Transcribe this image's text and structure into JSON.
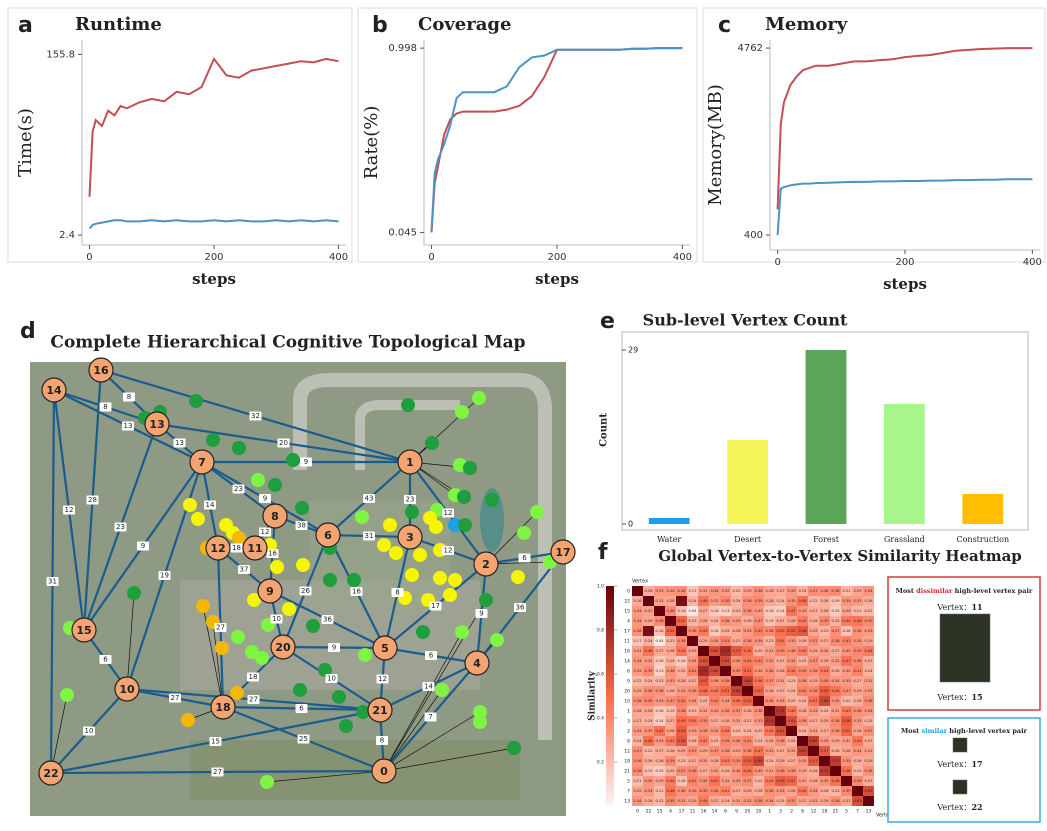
{
  "chart_data": [
    {
      "type": "line",
      "panel_label": "a",
      "title": "Runtime",
      "xlabel": "steps",
      "ylabel": "Time(s)",
      "x": [
        0,
        5,
        10,
        20,
        30,
        40,
        50,
        60,
        80,
        100,
        120,
        140,
        160,
        180,
        200,
        220,
        240,
        260,
        280,
        300,
        320,
        340,
        360,
        380,
        400
      ],
      "series": [
        {
          "color": "#c44e52",
          "values": [
            35,
            90,
            100,
            95,
            108,
            104,
            112,
            110,
            115,
            118,
            116,
            124,
            122,
            128,
            152,
            138,
            136,
            142,
            144,
            146,
            148,
            150,
            149,
            152,
            150
          ]
        },
        {
          "color": "#4c92c3",
          "values": [
            8,
            11,
            12,
            13,
            14,
            15,
            15,
            14,
            14,
            15,
            14,
            15,
            14,
            14,
            15,
            14,
            15,
            14,
            14,
            15,
            14,
            15,
            14,
            15,
            14
          ]
        }
      ],
      "xlim": [
        -12,
        412
      ],
      "ylim": [
        -6,
        168
      ],
      "xticks": [
        0,
        200,
        400
      ],
      "yticks": [
        2.4,
        155.8
      ]
    },
    {
      "type": "line",
      "panel_label": "b",
      "title": "Coverage",
      "xlabel": "steps",
      "ylabel": "Rate(%)",
      "x": [
        0,
        5,
        10,
        20,
        30,
        40,
        50,
        60,
        80,
        100,
        120,
        140,
        160,
        180,
        200,
        220,
        240,
        260,
        280,
        300,
        320,
        340,
        360,
        380,
        400
      ],
      "series": [
        {
          "color": "#c44e52",
          "values": [
            0.045,
            0.3,
            0.38,
            0.55,
            0.63,
            0.66,
            0.67,
            0.67,
            0.67,
            0.67,
            0.68,
            0.7,
            0.75,
            0.85,
            0.99,
            0.99,
            0.99,
            0.99,
            0.99,
            0.99,
            0.995,
            0.995,
            0.998,
            0.998,
            0.998
          ]
        },
        {
          "color": "#4c92c3",
          "values": [
            0.05,
            0.35,
            0.42,
            0.5,
            0.6,
            0.74,
            0.77,
            0.77,
            0.77,
            0.77,
            0.8,
            0.9,
            0.95,
            0.96,
            0.99,
            0.99,
            0.99,
            0.99,
            0.99,
            0.99,
            0.995,
            0.995,
            0.998,
            0.998,
            0.998
          ]
        }
      ],
      "xlim": [
        -12,
        412
      ],
      "ylim": [
        -0.02,
        1.04
      ],
      "xticks": [
        0,
        200,
        400
      ],
      "yticks": [
        0.045,
        0.998
      ]
    },
    {
      "type": "line",
      "panel_label": "c",
      "title": "Memory",
      "xlabel": "steps",
      "ylabel": "Memory(MB)",
      "x": [
        0,
        5,
        10,
        20,
        30,
        40,
        50,
        60,
        80,
        100,
        120,
        140,
        160,
        180,
        200,
        220,
        240,
        260,
        280,
        300,
        320,
        340,
        360,
        380,
        400
      ],
      "series": [
        {
          "color": "#c44e52",
          "values": [
            1000,
            3000,
            3500,
            3900,
            4100,
            4250,
            4300,
            4350,
            4350,
            4400,
            4450,
            4450,
            4480,
            4500,
            4550,
            4580,
            4600,
            4650,
            4700,
            4720,
            4740,
            4750,
            4760,
            4762,
            4762
          ]
        },
        {
          "color": "#4c92c3",
          "values": [
            400,
            1480,
            1520,
            1560,
            1580,
            1600,
            1600,
            1610,
            1620,
            1630,
            1640,
            1640,
            1650,
            1650,
            1660,
            1660,
            1670,
            1670,
            1680,
            1680,
            1690,
            1690,
            1700,
            1700,
            1700
          ]
        }
      ],
      "xlim": [
        -12,
        412
      ],
      "ylim": [
        50,
        4950
      ],
      "xticks": [
        0,
        200,
        400
      ],
      "yticks": [
        400,
        4762
      ]
    },
    {
      "type": "bar",
      "panel_label": "e",
      "title": "Sub-level Vertex Count",
      "ylabel": "Count",
      "categories": [
        "Water",
        "Desert",
        "Forest",
        "Grassland",
        "Construction"
      ],
      "values": [
        1,
        14,
        29,
        20,
        5
      ],
      "colors": [
        "#1fa0e6",
        "#f5f55a",
        "#5aa55a",
        "#a8f58c",
        "#ffbf00"
      ],
      "ylim": [
        0,
        31
      ],
      "yticks": [
        0,
        29
      ]
    },
    {
      "type": "heatmap",
      "panel_label": "f",
      "title": "Global Vertex-to-Vertex Similarity Heatmap",
      "axis_label": "Vertex",
      "colorbar_label": "Similarity",
      "categories": [
        0,
        22,
        15,
        4,
        17,
        11,
        16,
        14,
        6,
        9,
        20,
        10,
        1,
        3,
        2,
        8,
        12,
        18,
        21,
        5,
        7,
        13
      ],
      "zlim": [
        0,
        1
      ],
      "colorbar_ticks": [
        0.2,
        0.4,
        0.6,
        0.8,
        {
          "value": 1,
          "label": "1.0"
        }
      ],
      "values": [
        [
          1,
          0.26,
          0.33,
          0.34,
          0.36,
          0.17,
          0.31,
          0.34,
          0.32,
          0.22,
          0.29,
          0.36,
          0.28,
          0.27,
          0.33,
          0.24,
          0.37,
          0.36,
          0.38,
          0.21,
          0.29,
          0.34
        ],
        [
          0.26,
          1,
          0.31,
          0.28,
          0.93,
          0.24,
          0.46,
          0.32,
          0.39,
          0.24,
          0.36,
          0.39,
          0.28,
          0.24,
          0.35,
          0.48,
          0.22,
          0.26,
          0.19,
          0.35,
          0.33,
          0.26
        ],
        [
          0.33,
          0.31,
          1,
          0.38,
          0.18,
          0.04,
          0.27,
          0.16,
          0.13,
          0.23,
          0.36,
          0.33,
          0.16,
          0.14,
          0.47,
          0.33,
          0.27,
          0.26,
          0.15,
          0.29,
          0.21,
          0.22
        ],
        [
          0.34,
          0.28,
          0.38,
          1,
          0.52,
          0.23,
          0.28,
          0.24,
          0.36,
          0.33,
          0.26,
          0.37,
          0.19,
          0.27,
          0.28,
          0.43,
          0.26,
          0.39,
          0.25,
          0.44,
          0.46,
          0.39
        ],
        [
          0.36,
          0.93,
          0.18,
          0.52,
          1,
          0.38,
          0.45,
          0.16,
          0.25,
          0.28,
          0.33,
          0.42,
          0.38,
          0.49,
          0.55,
          0.58,
          0.29,
          0.23,
          0.37,
          0.18,
          0.36,
          0.33
        ],
        [
          0.17,
          0.24,
          0.04,
          0.23,
          0.38,
          1,
          0.29,
          0.34,
          0.41,
          0.27,
          0.36,
          0.34,
          0.23,
          0.45,
          0.33,
          0.26,
          0.37,
          0.27,
          0.38,
          0.41,
          0.35,
          0.29
        ],
        [
          0.31,
          0.46,
          0.27,
          0.28,
          0.45,
          0.29,
          1,
          0.62,
          0.79,
          0.57,
          0.48,
          0.25,
          0.31,
          0.39,
          0.36,
          0.42,
          0.29,
          0.32,
          0.27,
          0.35,
          0.39,
          0.44
        ],
        [
          0.34,
          0.32,
          0.16,
          0.24,
          0.16,
          0.34,
          0.62,
          1,
          0.64,
          0.36,
          0.44,
          0.41,
          0.33,
          0.27,
          0.34,
          0.25,
          0.37,
          0.28,
          0.32,
          0.47,
          0.38,
          0.27
        ],
        [
          0.32,
          0.39,
          0.13,
          0.36,
          0.25,
          0.41,
          0.79,
          0.64,
          1,
          0.39,
          0.51,
          0.34,
          0.36,
          0.28,
          0.44,
          0.39,
          0.36,
          0.43,
          0.26,
          0.32,
          0.41,
          0.24
        ],
        [
          0.22,
          0.24,
          0.23,
          0.33,
          0.28,
          0.27,
          0.57,
          0.36,
          0.39,
          1,
          0.68,
          0.46,
          0.37,
          0.31,
          0.23,
          0.36,
          0.29,
          0.39,
          0.34,
          0.33,
          0.27,
          0.31
        ],
        [
          0.29,
          0.36,
          0.36,
          0.26,
          0.33,
          0.36,
          0.48,
          0.44,
          0.51,
          0.68,
          1,
          0.53,
          0.28,
          0.27,
          0.24,
          0.41,
          0.38,
          0.55,
          0.46,
          0.37,
          0.29,
          0.33
        ],
        [
          0.36,
          0.39,
          0.33,
          0.37,
          0.42,
          0.34,
          0.25,
          0.41,
          0.34,
          0.46,
          0.53,
          1,
          0.36,
          0.33,
          0.25,
          0.24,
          0.47,
          0.66,
          0.35,
          0.22,
          0.26,
          0.38
        ],
        [
          0.28,
          0.28,
          0.16,
          0.19,
          0.38,
          0.23,
          0.31,
          0.33,
          0.36,
          0.37,
          0.28,
          0.36,
          1,
          0.74,
          0.45,
          0.28,
          0.33,
          0.24,
          0.31,
          0.43,
          0.36,
          0.34
        ],
        [
          0.27,
          0.24,
          0.14,
          0.27,
          0.49,
          0.45,
          0.39,
          0.27,
          0.28,
          0.31,
          0.27,
          0.33,
          0.74,
          1,
          0.61,
          0.36,
          0.27,
          0.29,
          0.38,
          0.56,
          0.33,
          0.25
        ],
        [
          0.33,
          0.35,
          0.47,
          0.28,
          0.55,
          0.33,
          0.36,
          0.34,
          0.44,
          0.23,
          0.24,
          0.25,
          0.45,
          0.61,
          1,
          0.24,
          0.31,
          0.27,
          0.36,
          0.52,
          0.28,
          0.37
        ],
        [
          0.24,
          0.48,
          0.33,
          0.43,
          0.58,
          0.26,
          0.42,
          0.25,
          0.39,
          0.36,
          0.41,
          0.24,
          0.28,
          0.36,
          0.24,
          1,
          0.69,
          0.33,
          0.29,
          0.31,
          0.45,
          0.27
        ],
        [
          0.37,
          0.22,
          0.27,
          0.26,
          0.29,
          0.37,
          0.29,
          0.37,
          0.36,
          0.29,
          0.38,
          0.47,
          0.33,
          0.27,
          0.31,
          0.69,
          1,
          0.57,
          0.26,
          0.28,
          0.34,
          0.31
        ],
        [
          0.36,
          0.26,
          0.26,
          0.39,
          0.23,
          0.27,
          0.32,
          0.28,
          0.43,
          0.39,
          0.55,
          0.66,
          0.24,
          0.29,
          0.27,
          0.33,
          0.57,
          1,
          0.71,
          0.35,
          0.26,
          0.29
        ],
        [
          0.38,
          0.19,
          0.15,
          0.25,
          0.37,
          0.38,
          0.27,
          0.32,
          0.26,
          0.34,
          0.46,
          0.35,
          0.31,
          0.38,
          0.36,
          0.29,
          0.26,
          0.71,
          1,
          0.48,
          0.23,
          0.36
        ],
        [
          0.21,
          0.35,
          0.29,
          0.44,
          0.18,
          0.41,
          0.35,
          0.47,
          0.32,
          0.33,
          0.37,
          0.22,
          0.43,
          0.56,
          0.52,
          0.31,
          0.28,
          0.35,
          0.48,
          1,
          0.39,
          0.27
        ],
        [
          0.29,
          0.33,
          0.21,
          0.46,
          0.36,
          0.35,
          0.39,
          0.38,
          0.41,
          0.27,
          0.29,
          0.26,
          0.36,
          0.33,
          0.28,
          0.45,
          0.34,
          0.26,
          0.23,
          0.39,
          1,
          0.63
        ],
        [
          0.34,
          0.26,
          0.22,
          0.39,
          0.33,
          0.29,
          0.44,
          0.27,
          0.24,
          0.31,
          0.33,
          0.38,
          0.34,
          0.25,
          0.37,
          0.27,
          0.31,
          0.29,
          0.36,
          0.27,
          0.63,
          1
        ]
      ]
    }
  ],
  "map": {
    "panel_label": "d",
    "title": "Complete Hierarchical Cognitive Topological Map",
    "nodes": [
      0,
      1,
      2,
      3,
      4,
      5,
      6,
      7,
      8,
      9,
      10,
      11,
      12,
      13,
      14,
      15,
      16,
      17,
      18,
      20,
      21,
      22
    ],
    "edges": [
      {
        "source": 16,
        "target": 13,
        "label": 8
      },
      {
        "source": 14,
        "target": 13,
        "label": 8
      },
      {
        "source": 16,
        "target": 1,
        "label": 32
      },
      {
        "source": 13,
        "target": 1,
        "label": 20
      },
      {
        "source": 14,
        "target": 7,
        "label": 13
      },
      {
        "source": 13,
        "target": 7,
        "label": 13
      },
      {
        "source": 7,
        "target": 1,
        "label": 9
      },
      {
        "source": 14,
        "target": 15,
        "label": 12
      },
      {
        "source": 14,
        "target": 22,
        "label": 31
      },
      {
        "source": 16,
        "target": 15,
        "label": 28
      },
      {
        "source": 13,
        "target": 15,
        "label": 23
      },
      {
        "source": 7,
        "target": 15,
        "label": 9
      },
      {
        "source": 7,
        "target": 10,
        "label": 19
      },
      {
        "source": 7,
        "target": 8,
        "label": 23
      },
      {
        "source": 7,
        "target": 6,
        "label": 9
      },
      {
        "source": 1,
        "target": 6,
        "label": 43
      },
      {
        "source": 1,
        "target": 3,
        "label": 23
      },
      {
        "source": 1,
        "target": 2,
        "label": 12
      },
      {
        "source": 3,
        "target": 2,
        "label": 12
      },
      {
        "source": 2,
        "target": 17,
        "label": 6
      },
      {
        "source": 2,
        "target": 4,
        "label": 9
      },
      {
        "source": 4,
        "target": 17,
        "label": 36
      },
      {
        "source": 5,
        "target": 2,
        "label": 17
      },
      {
        "source": 5,
        "target": 3,
        "label": 8
      },
      {
        "source": 5,
        "target": 4,
        "label": 6
      },
      {
        "source": 6,
        "target": 3,
        "label": 31
      },
      {
        "source": 8,
        "target": 6,
        "label": 38
      },
      {
        "source": 8,
        "target": 11,
        "label": 12
      },
      {
        "source": 11,
        "target": 12,
        "label": 18
      },
      {
        "source": 12,
        "target": 9,
        "label": 37
      },
      {
        "source": 8,
        "target": 9,
        "label": 16
      },
      {
        "source": 9,
        "target": 20,
        "label": 10
      },
      {
        "source": 9,
        "target": 5,
        "label": 36
      },
      {
        "source": 6,
        "target": 20,
        "label": 26
      },
      {
        "source": 20,
        "target": 5,
        "label": 9
      },
      {
        "source": 20,
        "target": 18,
        "label": 18
      },
      {
        "source": 20,
        "target": 21,
        "label": 10
      },
      {
        "source": 18,
        "target": 21,
        "label": 6
      },
      {
        "source": 10,
        "target": 18,
        "label": 27
      },
      {
        "source": 10,
        "target": 21,
        "label": 27
      },
      {
        "source": 15,
        "target": 10,
        "label": 6
      },
      {
        "source": 22,
        "target": 10,
        "label": 10
      },
      {
        "source": 22,
        "target": 21,
        "label": 15
      },
      {
        "source": 22,
        "target": 0,
        "label": 27
      },
      {
        "source": 18,
        "target": 0,
        "label": 25
      },
      {
        "source": 21,
        "target": 0,
        "label": 8
      },
      {
        "source": 5,
        "target": 21,
        "label": 12
      },
      {
        "source": 4,
        "target": 21,
        "label": 14
      },
      {
        "source": 7,
        "target": 12,
        "label": 14
      },
      {
        "source": 12,
        "target": 18,
        "label": 27
      },
      {
        "source": 6,
        "target": 5,
        "label": 16
      },
      {
        "source": 4,
        "target": 0,
        "label": 7
      }
    ]
  },
  "pair_panels": [
    {
      "title_pre": "Most ",
      "title_key": "dissimilar",
      "title_post": " high-level vertex pair",
      "key_color": "#d62728",
      "border_color": "#d9363e",
      "vertex_label": "Vertex：",
      "vertices": [
        11,
        15
      ]
    },
    {
      "title_pre": "Most ",
      "title_key": "similar",
      "title_post": " high-level vertex pair",
      "key_color": "#1fa0e6",
      "border_color": "#3aaed8",
      "vertex_label": "Vertex：",
      "vertices": [
        17,
        22
      ]
    }
  ]
}
